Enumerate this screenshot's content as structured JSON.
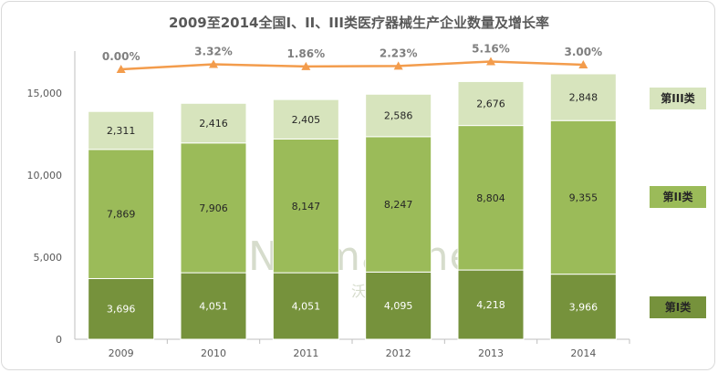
{
  "watermark": {
    "text": "Normalline",
    "sub": "若沃兰"
  },
  "chart_data": {
    "type": "bar",
    "stacked": true,
    "title": "2009至2014全国I、II、III类医疗器械生产企业数量及增长率",
    "categories": [
      "2009",
      "2010",
      "2011",
      "2012",
      "2013",
      "2014"
    ],
    "ylim": [
      0,
      17000
    ],
    "yticks": [
      0,
      5000,
      10000,
      15000
    ],
    "ytick_labels": [
      "0",
      "5,000",
      "10,000",
      "15,000"
    ],
    "grid": false,
    "legend_position": "right",
    "series": [
      {
        "name": "第I类",
        "color": "#76923c",
        "values": [
          3696,
          4051,
          4051,
          4095,
          4218,
          3966
        ],
        "labels": [
          "3,696",
          "4,051",
          "4,051",
          "4,095",
          "4,218",
          "3,966"
        ]
      },
      {
        "name": "第II类",
        "color": "#9bbb59",
        "values": [
          7869,
          7906,
          8147,
          8247,
          8804,
          9355
        ],
        "labels": [
          "7,869",
          "7,906",
          "8,147",
          "8,247",
          "8,804",
          "9,355"
        ]
      },
      {
        "name": "第III类",
        "color": "#d7e4bd",
        "values": [
          2311,
          2416,
          2405,
          2586,
          2676,
          2848
        ],
        "labels": [
          "2,311",
          "2,416",
          "2,405",
          "2,586",
          "2,676",
          "2,848"
        ]
      }
    ],
    "growth": {
      "line_color": "#f39c4c",
      "values": [
        0.0,
        3.32,
        1.86,
        2.23,
        5.16,
        3.0
      ],
      "labels": [
        "0.00%",
        "3.32%",
        "1.86%",
        "2.23%",
        "5.16%",
        "3.00%"
      ]
    }
  }
}
